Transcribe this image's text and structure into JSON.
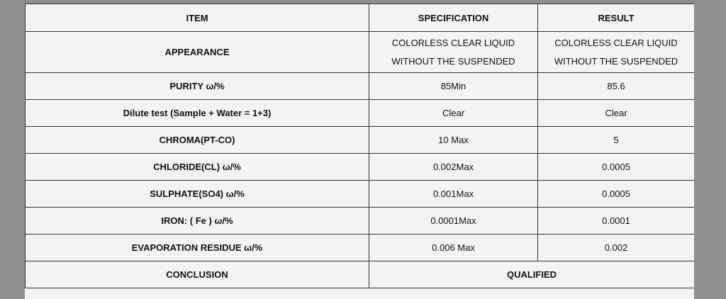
{
  "table": {
    "header": [
      "ITEM",
      "SPECIFICATION",
      "RESULT"
    ],
    "rows": [
      [
        "APPEARANCE",
        [
          "COLORLESS CLEAR LIQUID",
          "WITHOUT THE SUSPENDED"
        ],
        [
          "COLORLESS CLEAR LIQUID",
          "WITHOUT THE SUSPENDED"
        ]
      ],
      [
        "PURITY ω/%",
        "85Min",
        "85.6"
      ],
      [
        "Dilute test (Sample + Water = 1+3)",
        "Clear",
        "Clear"
      ],
      [
        "CHROMA(PT-CO)",
        "10 Max",
        "5"
      ],
      [
        "CHLORIDE(CL) ω/%",
        "0.002Max",
        "0.0005"
      ],
      [
        "SULPHATE(SO4) ω/%",
        "0.001Max",
        "0.0005"
      ],
      [
        "IRON: ( Fe ) ω/%",
        "0.0001Max",
        "0.0001"
      ],
      [
        "EVAPORATION RESIDUE ω/%",
        "0.006 Max",
        "0.002"
      ]
    ],
    "conclusion": {
      "label": "CONCLUSION",
      "value": "QUALIFIED"
    }
  }
}
